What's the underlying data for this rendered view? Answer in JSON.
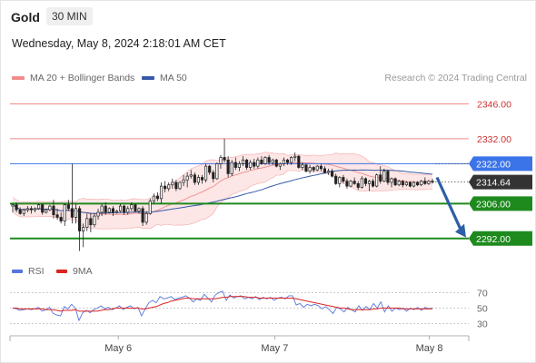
{
  "header": {
    "title": "Gold",
    "timeframe": "30 MIN",
    "timestamp": "Wednesday, May 8, 2024 2:18:01 AM CET"
  },
  "legend": {
    "bollinger_label": "MA 20 + Bollinger Bands",
    "ma50_label": "MA 50",
    "credit": "Research © 2024 Trading Central"
  },
  "colors": {
    "resistance": "#f08a8a",
    "pivot": "#3b73e8",
    "support": "#1e8a1e",
    "price_tag": "#333333",
    "candle": "#222222",
    "ma20": "#ef8c8c",
    "ma50": "#3559a8",
    "band_fill": "#fde0e0",
    "rsi": "#5577dd",
    "rsi_ma": "#dd2222",
    "arrow": "#2d5fa6"
  },
  "chart_data": {
    "type": "candlestick",
    "y_range": [
      2285,
      2352
    ],
    "x_labels": [
      {
        "label": "May 6",
        "x_fraction": 0.236
      },
      {
        "label": "May 7",
        "x_fraction": 0.577
      },
      {
        "label": "May 8",
        "x_fraction": 0.914
      }
    ],
    "levels": [
      {
        "value": 2346.0,
        "label": "2346.00",
        "kind": "resistance"
      },
      {
        "value": 2332.0,
        "label": "2332.00",
        "kind": "resistance"
      },
      {
        "value": 2322.0,
        "label": "2322.00",
        "kind": "pivot"
      },
      {
        "value": 2306.0,
        "label": "2306.00",
        "kind": "support"
      },
      {
        "value": 2292.0,
        "label": "2292.00",
        "kind": "support"
      }
    ],
    "last_price": {
      "value": 2314.64,
      "label": "2314.64"
    },
    "forecast_arrow": {
      "from": 2316.5,
      "to": 2293.5
    },
    "candles": [
      [
        2305.0,
        2306.0,
        2302.5,
        2305.5
      ],
      [
        2305.5,
        2306.5,
        2302.5,
        2303.5
      ],
      [
        2303.5,
        2304.5,
        2301.5,
        2302.0
      ],
      [
        2302.0,
        2304.0,
        2301.0,
        2303.5
      ],
      [
        2303.5,
        2305.0,
        2302.5,
        2304.0
      ],
      [
        2304.0,
        2305.0,
        2302.0,
        2303.5
      ],
      [
        2303.5,
        2304.5,
        2302.5,
        2304.0
      ],
      [
        2304.0,
        2306.0,
        2303.5,
        2305.5
      ],
      [
        2305.5,
        2306.0,
        2301.5,
        2302.5
      ],
      [
        2302.5,
        2304.0,
        2302.0,
        2303.5
      ],
      [
        2303.5,
        2305.5,
        2303.0,
        2305.0
      ],
      [
        2305.0,
        2307.5,
        2300.0,
        2301.5
      ],
      [
        2301.5,
        2304.0,
        2299.5,
        2300.5
      ],
      [
        2300.5,
        2302.5,
        2298.0,
        2299.0
      ],
      [
        2299.0,
        2306.0,
        2297.0,
        2305.5
      ],
      [
        2305.5,
        2307.5,
        2303.0,
        2304.0
      ],
      [
        2304.0,
        2322.0,
        2298.0,
        2300.5
      ],
      [
        2300.5,
        2306.0,
        2298.0,
        2304.0
      ],
      [
        2304.0,
        2305.0,
        2287.0,
        2295.0
      ],
      [
        2295.0,
        2298.0,
        2288.5,
        2296.5
      ],
      [
        2296.5,
        2302.0,
        2295.0,
        2300.0
      ],
      [
        2300.0,
        2302.0,
        2294.5,
        2297.5
      ],
      [
        2297.5,
        2302.0,
        2296.5,
        2301.0
      ],
      [
        2301.0,
        2304.0,
        2299.5,
        2302.5
      ],
      [
        2302.5,
        2306.0,
        2301.0,
        2305.0
      ],
      [
        2305.0,
        2306.5,
        2301.5,
        2302.5
      ],
      [
        2302.5,
        2304.5,
        2302.0,
        2304.0
      ],
      [
        2304.0,
        2305.0,
        2301.0,
        2302.5
      ],
      [
        2302.5,
        2303.5,
        2302.0,
        2303.0
      ],
      [
        2303.0,
        2306.0,
        2302.5,
        2305.0
      ],
      [
        2305.0,
        2305.5,
        2301.5,
        2302.5
      ],
      [
        2302.5,
        2305.0,
        2301.5,
        2304.0
      ],
      [
        2304.0,
        2306.5,
        2303.0,
        2305.5
      ],
      [
        2305.5,
        2306.0,
        2302.5,
        2303.0
      ],
      [
        2303.0,
        2304.5,
        2302.0,
        2304.0
      ],
      [
        2304.0,
        2305.0,
        2297.0,
        2298.5
      ],
      [
        2298.5,
        2303.0,
        2297.5,
        2302.0
      ],
      [
        2302.0,
        2308.0,
        2301.5,
        2307.0
      ],
      [
        2307.0,
        2310.0,
        2306.0,
        2309.0
      ],
      [
        2309.0,
        2310.5,
        2307.0,
        2308.0
      ],
      [
        2308.0,
        2314.5,
        2306.0,
        2313.0
      ],
      [
        2313.0,
        2315.0,
        2310.5,
        2312.0
      ],
      [
        2312.0,
        2314.5,
        2311.0,
        2313.5
      ],
      [
        2313.5,
        2316.0,
        2312.0,
        2314.5
      ],
      [
        2314.5,
        2315.5,
        2311.0,
        2312.0
      ],
      [
        2312.0,
        2315.0,
        2311.5,
        2314.5
      ],
      [
        2314.5,
        2317.5,
        2313.0,
        2315.5
      ],
      [
        2315.5,
        2318.5,
        2312.5,
        2317.0
      ],
      [
        2317.0,
        2319.5,
        2316.0,
        2317.5
      ],
      [
        2317.5,
        2318.5,
        2313.5,
        2314.5
      ],
      [
        2314.5,
        2317.5,
        2313.5,
        2316.5
      ],
      [
        2316.5,
        2317.5,
        2314.0,
        2315.5
      ],
      [
        2315.5,
        2322.0,
        2314.5,
        2321.0
      ],
      [
        2321.0,
        2321.5,
        2317.5,
        2318.5
      ],
      [
        2318.5,
        2319.5,
        2314.5,
        2316.0
      ],
      [
        2316.0,
        2322.5,
        2315.5,
        2322.0
      ],
      [
        2322.0,
        2325.5,
        2320.0,
        2324.5
      ],
      [
        2324.5,
        2332.0,
        2322.5,
        2323.5
      ],
      [
        2323.5,
        2325.0,
        2316.5,
        2318.0
      ],
      [
        2318.0,
        2323.5,
        2317.0,
        2322.5
      ],
      [
        2322.5,
        2324.5,
        2319.5,
        2320.5
      ],
      [
        2320.5,
        2323.0,
        2319.0,
        2322.0
      ],
      [
        2322.0,
        2325.0,
        2321.0,
        2323.5
      ],
      [
        2323.5,
        2324.0,
        2319.5,
        2320.5
      ],
      [
        2320.5,
        2323.5,
        2319.5,
        2322.5
      ],
      [
        2322.5,
        2324.0,
        2320.0,
        2321.0
      ],
      [
        2321.0,
        2324.5,
        2320.0,
        2323.5
      ],
      [
        2323.5,
        2325.0,
        2321.5,
        2322.0
      ],
      [
        2322.0,
        2325.0,
        2321.5,
        2324.5
      ],
      [
        2324.5,
        2325.5,
        2321.5,
        2322.5
      ],
      [
        2322.5,
        2324.0,
        2321.5,
        2323.5
      ],
      [
        2323.5,
        2324.0,
        2320.5,
        2321.0
      ],
      [
        2321.0,
        2322.5,
        2319.5,
        2322.0
      ],
      [
        2322.0,
        2324.5,
        2321.0,
        2323.5
      ],
      [
        2323.5,
        2324.0,
        2321.5,
        2322.5
      ],
      [
        2322.5,
        2325.0,
        2321.5,
        2324.5
      ],
      [
        2324.5,
        2326.5,
        2323.0,
        2325.0
      ],
      [
        2325.0,
        2325.5,
        2320.0,
        2320.5
      ],
      [
        2320.5,
        2322.5,
        2319.5,
        2321.5
      ],
      [
        2321.5,
        2322.0,
        2318.5,
        2319.0
      ],
      [
        2319.0,
        2321.5,
        2318.0,
        2320.5
      ],
      [
        2320.5,
        2321.0,
        2318.5,
        2319.5
      ],
      [
        2319.5,
        2321.5,
        2319.0,
        2321.0
      ],
      [
        2321.0,
        2322.0,
        2319.0,
        2320.0
      ],
      [
        2320.0,
        2321.0,
        2318.0,
        2318.5
      ],
      [
        2318.5,
        2320.0,
        2317.5,
        2319.0
      ],
      [
        2319.0,
        2320.0,
        2316.5,
        2317.0
      ],
      [
        2317.0,
        2318.0,
        2313.5,
        2314.0
      ],
      [
        2314.0,
        2317.0,
        2312.5,
        2316.5
      ],
      [
        2316.5,
        2317.5,
        2314.0,
        2315.0
      ],
      [
        2315.0,
        2316.0,
        2312.0,
        2313.0
      ],
      [
        2313.0,
        2315.5,
        2312.5,
        2315.0
      ],
      [
        2315.0,
        2316.5,
        2313.5,
        2314.0
      ],
      [
        2314.0,
        2315.0,
        2311.5,
        2312.5
      ],
      [
        2312.5,
        2317.0,
        2312.0,
        2316.0
      ],
      [
        2316.0,
        2316.5,
        2313.0,
        2314.0
      ],
      [
        2314.0,
        2315.5,
        2311.0,
        2315.0
      ],
      [
        2315.0,
        2316.0,
        2312.5,
        2313.0
      ],
      [
        2313.0,
        2318.0,
        2312.5,
        2317.5
      ],
      [
        2317.5,
        2321.0,
        2314.0,
        2315.0
      ],
      [
        2315.0,
        2320.0,
        2314.5,
        2319.0
      ],
      [
        2319.0,
        2319.5,
        2313.5,
        2314.5
      ],
      [
        2314.5,
        2316.5,
        2312.5,
        2316.0
      ],
      [
        2316.0,
        2316.5,
        2313.0,
        2313.5
      ],
      [
        2313.5,
        2315.5,
        2313.0,
        2315.0
      ],
      [
        2315.0,
        2315.5,
        2312.5,
        2313.5
      ],
      [
        2313.5,
        2315.0,
        2313.0,
        2314.5
      ],
      [
        2314.5,
        2315.0,
        2312.5,
        2313.0
      ],
      [
        2313.0,
        2315.0,
        2312.5,
        2314.5
      ],
      [
        2314.5,
        2315.0,
        2313.0,
        2313.5
      ],
      [
        2313.5,
        2315.5,
        2313.0,
        2315.0
      ],
      [
        2315.0,
        2316.5,
        2313.5,
        2314.0
      ],
      [
        2314.0,
        2315.5,
        2313.5,
        2315.0
      ],
      [
        2315.0,
        2316.0,
        2314.0,
        2314.6
      ]
    ],
    "rsi": {
      "y_range": [
        20,
        80
      ],
      "ticks": [
        70,
        50,
        30
      ],
      "values": [
        50,
        49,
        47,
        48,
        49,
        48,
        49,
        51,
        46,
        48,
        51,
        43,
        41,
        40,
        52,
        49,
        55,
        50,
        34,
        44,
        47,
        44,
        48,
        50,
        53,
        49,
        51,
        48,
        50,
        53,
        48,
        51,
        53,
        49,
        51,
        40,
        49,
        57,
        60,
        57,
        65,
        62,
        63,
        65,
        61,
        63,
        64,
        66,
        63,
        58,
        62,
        60,
        68,
        63,
        58,
        67,
        70,
        72,
        60,
        67,
        63,
        65,
        66,
        62,
        64,
        62,
        65,
        61,
        64,
        62,
        64,
        60,
        63,
        64,
        62,
        66,
        66,
        54,
        56,
        51,
        55,
        53,
        55,
        53,
        49,
        52,
        48,
        43,
        51,
        49,
        45,
        51,
        48,
        45,
        53,
        47,
        52,
        48,
        56,
        50,
        58,
        45,
        53,
        46,
        50,
        48,
        50,
        46,
        50,
        48,
        51,
        47,
        51,
        49,
        50
      ],
      "ma9": [
        50,
        50,
        49,
        49,
        49,
        49,
        49,
        49,
        49,
        48,
        48,
        48,
        47,
        46,
        47,
        47,
        47,
        48,
        46,
        46,
        46,
        46,
        46,
        46,
        47,
        48,
        48,
        49,
        50,
        50,
        50,
        50,
        50,
        50,
        50,
        49,
        49,
        50,
        51,
        52,
        54,
        56,
        57,
        59,
        60,
        61,
        62,
        63,
        63,
        62,
        62,
        62,
        62,
        62,
        62,
        62,
        63,
        64,
        64,
        65,
        65,
        65,
        65,
        65,
        64,
        64,
        64,
        63,
        63,
        63,
        63,
        63,
        63,
        63,
        63,
        63,
        63,
        62,
        61,
        60,
        59,
        58,
        57,
        56,
        55,
        54,
        53,
        52,
        51,
        50,
        50,
        49,
        48,
        48,
        48,
        48,
        48,
        48,
        49,
        49,
        50,
        50,
        50,
        50,
        50,
        50,
        49,
        49,
        49,
        49,
        49,
        49,
        49,
        49,
        49
      ]
    }
  }
}
